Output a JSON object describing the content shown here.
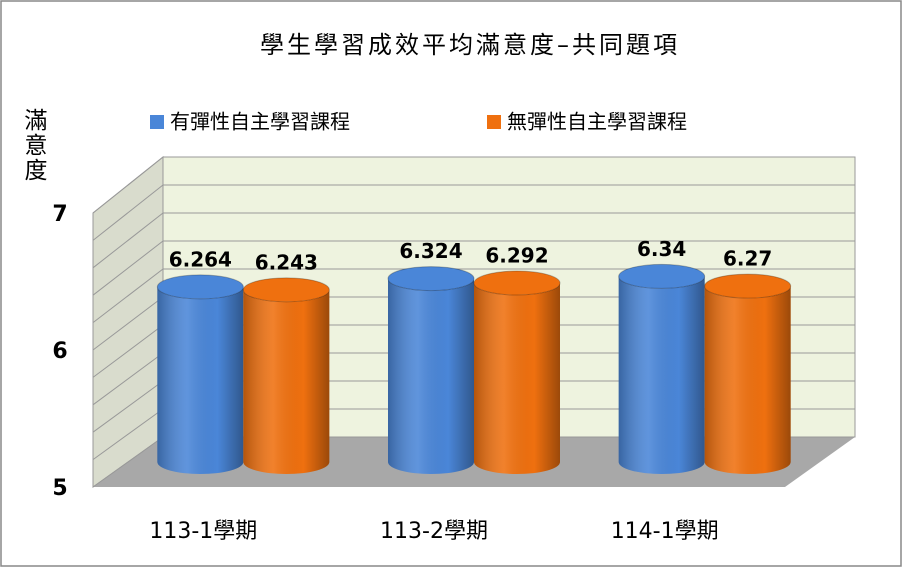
{
  "chart_data": {
    "type": "cylinder-bar",
    "title": "學生學習成效平均滿意度–共同題項",
    "y_label": "滿意度",
    "categories": [
      "113-1學期",
      "113-2學期",
      "114-1學期"
    ],
    "series": [
      {
        "name": "有彈性自主學習課程",
        "color": "#4a86d8",
        "values": [
          6.264,
          6.324,
          6.34
        ]
      },
      {
        "name": "無彈性自主學習課程",
        "color": "#ef700f",
        "values": [
          6.243,
          6.292,
          6.27
        ]
      }
    ],
    "ylim": [
      5,
      7
    ],
    "yticks": [
      5,
      6,
      7
    ],
    "minor_yticks": [
      5.2,
      5.4,
      5.6,
      5.8,
      6.2,
      6.4,
      6.6,
      6.8
    ],
    "grid": true
  }
}
